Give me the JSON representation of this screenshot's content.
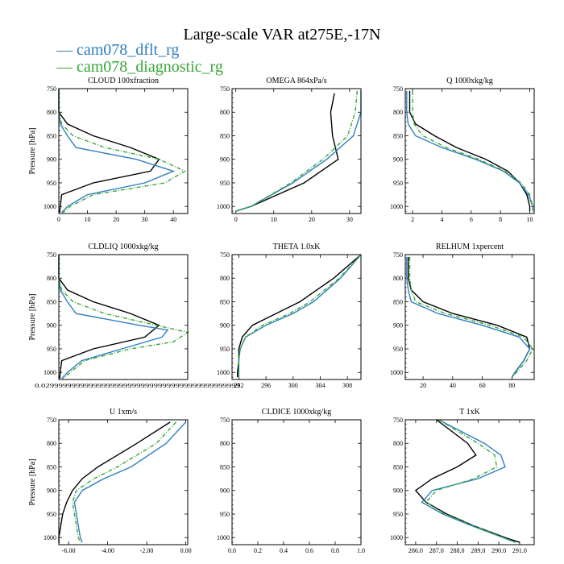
{
  "figure": {
    "title": "Large-scale VAR at275E,-17N",
    "legend": [
      {
        "name": "cam078_dflt_rg",
        "color": "#2f7fc1"
      },
      {
        "name": "cam078_diagnostic_rg",
        "color": "#3aa53a"
      }
    ],
    "black_line_color": "#000000"
  },
  "chart_data": [
    {
      "type": "line",
      "title": "CLOUD 100xfraction",
      "ylabel": "Pressure [hPa]",
      "xlim": [
        0,
        45
      ],
      "ylim": [
        750,
        1015
      ],
      "y_inverted": true,
      "xticks": [
        0,
        10,
        20,
        30,
        40
      ],
      "xtick_labels": [
        "0",
        "10",
        "20",
        "30",
        "40"
      ],
      "yticks": [
        750,
        800,
        850,
        900,
        950,
        1000
      ],
      "series": [
        {
          "key": "black",
          "color": "#000000",
          "y": [
            750,
            800,
            825,
            850,
            875,
            900,
            925,
            950,
            975,
            1000,
            1013
          ],
          "x": [
            0,
            0,
            3,
            12,
            25,
            35,
            32,
            12,
            1,
            0.5,
            0.3
          ]
        },
        {
          "name": "cam078_dflt_rg",
          "color": "#2f7fc1",
          "y": [
            750,
            800,
            825,
            850,
            875,
            900,
            925,
            950,
            975,
            1000,
            1013
          ],
          "x": [
            0,
            0,
            0.5,
            3,
            6,
            27,
            40,
            30,
            10,
            3,
            1
          ]
        },
        {
          "name": "cam078_diagnostic_rg",
          "color": "#3aa53a",
          "dashed": true,
          "y": [
            750,
            800,
            825,
            850,
            875,
            900,
            925,
            950,
            975,
            1000,
            1013
          ],
          "x": [
            0,
            0,
            1,
            5,
            16,
            35,
            44,
            37,
            12,
            4,
            1.5
          ]
        }
      ]
    },
    {
      "type": "line",
      "title": "OMEGA 864xPa/s",
      "ylabel": "",
      "xlim": [
        -1,
        33
      ],
      "ylim": [
        750,
        1015
      ],
      "y_inverted": true,
      "xticks": [
        0,
        10,
        20,
        30
      ],
      "xtick_labels": [
        "0",
        "10",
        "20",
        "30"
      ],
      "yticks": [
        750,
        800,
        850,
        900,
        950,
        1000
      ],
      "series": [
        {
          "key": "black",
          "color": "#000000",
          "y": [
            760,
            800,
            850,
            900,
            950,
            1000,
            1010
          ],
          "x": [
            26,
            25,
            25.5,
            27,
            18,
            4,
            0
          ]
        },
        {
          "name": "cam078_dflt_rg",
          "color": "#2f7fc1",
          "y": [
            755,
            800,
            850,
            900,
            950,
            1000,
            1010
          ],
          "x": [
            33,
            33,
            31,
            24,
            15,
            4,
            0
          ]
        },
        {
          "name": "cam078_diagnostic_rg",
          "color": "#3aa53a",
          "dashed": true,
          "y": [
            755,
            800,
            850,
            900,
            950,
            1000,
            1010
          ],
          "x": [
            32,
            31.5,
            29.5,
            23,
            14.5,
            4,
            0
          ]
        }
      ]
    },
    {
      "type": "line",
      "title": "Q 1000xkg/kg",
      "ylabel": "",
      "xlim": [
        1.5,
        10.3
      ],
      "ylim": [
        750,
        1015
      ],
      "y_inverted": true,
      "xticks": [
        2,
        4,
        6,
        8,
        10
      ],
      "xtick_labels": [
        "2",
        "4",
        "6",
        "8",
        "10"
      ],
      "yticks": [
        750,
        800,
        850,
        900,
        950,
        1000
      ],
      "series": [
        {
          "key": "black",
          "color": "#000000",
          "y": [
            755,
            800,
            825,
            850,
            875,
            900,
            925,
            950,
            975,
            1000,
            1010
          ],
          "x": [
            1.8,
            1.8,
            2.2,
            3.5,
            5,
            7,
            8.5,
            9.3,
            9.8,
            10,
            10
          ]
        },
        {
          "name": "cam078_dflt_rg",
          "color": "#2f7fc1",
          "y": [
            755,
            800,
            825,
            850,
            875,
            900,
            925,
            950,
            975,
            1000,
            1010
          ],
          "x": [
            1.6,
            1.6,
            1.7,
            2.2,
            4,
            6.3,
            8.2,
            9.3,
            9.9,
            10.2,
            10.2
          ]
        },
        {
          "name": "cam078_diagnostic_rg",
          "color": "#3aa53a",
          "dashed": true,
          "y": [
            755,
            800,
            825,
            850,
            875,
            900,
            925,
            950,
            975,
            1000,
            1010
          ],
          "x": [
            2,
            2,
            2.1,
            2.7,
            4.3,
            6.5,
            8.3,
            9.4,
            10,
            10.2,
            10.2
          ]
        }
      ]
    },
    {
      "type": "line",
      "title": "CLDLIQ 1000xkg/kg",
      "ylabel": "Pressure [hPa]",
      "xlim": [
        0,
        45
      ],
      "ylim": [
        750,
        1015
      ],
      "y_inverted": true,
      "xticks": [],
      "xtick_labels": [],
      "x_extra_label": "0.0299999999999999999999999999999999999999999999",
      "yticks": [
        750,
        800,
        850,
        900,
        950,
        1000
      ],
      "series": [
        {
          "key": "black",
          "color": "#000000",
          "y": [
            750,
            800,
            825,
            850,
            875,
            900,
            925,
            950,
            975,
            1000,
            1013
          ],
          "x": [
            0,
            0,
            3,
            12,
            25,
            35,
            30,
            12,
            1,
            0.5,
            0.3
          ]
        },
        {
          "name": "cam078_dflt_rg",
          "color": "#2f7fc1",
          "y": [
            750,
            800,
            825,
            850,
            875,
            900,
            910,
            925,
            950,
            975,
            1000,
            1013
          ],
          "x": [
            0,
            0,
            0.5,
            3,
            6,
            28,
            38,
            36,
            22,
            8,
            3,
            1
          ]
        },
        {
          "name": "cam078_diagnostic_rg",
          "color": "#3aa53a",
          "dashed": true,
          "y": [
            750,
            800,
            825,
            850,
            875,
            900,
            915,
            935,
            950,
            975,
            1000,
            1013
          ],
          "x": [
            0,
            0,
            1,
            5,
            16,
            34,
            45,
            40,
            25,
            9,
            4,
            1.5
          ]
        }
      ]
    },
    {
      "type": "line",
      "title": "THETA 1.0xK",
      "ylabel": "",
      "xlim": [
        291,
        310
      ],
      "ylim": [
        750,
        1015
      ],
      "y_inverted": true,
      "xticks": [
        292,
        296,
        300,
        304,
        308
      ],
      "xtick_labels": [
        "292",
        "296",
        "300",
        "304",
        "308"
      ],
      "yticks": [
        750,
        800,
        850,
        900,
        950,
        1000
      ],
      "series": [
        {
          "key": "black",
          "color": "#000000",
          "y": [
            750,
            800,
            850,
            875,
            900,
            925,
            950,
            975,
            1000,
            1010
          ],
          "x": [
            310,
            306,
            301,
            297.5,
            294,
            292.5,
            292,
            292,
            291.8,
            291.8
          ]
        },
        {
          "name": "cam078_dflt_rg",
          "color": "#2f7fc1",
          "y": [
            750,
            800,
            850,
            875,
            900,
            925,
            950,
            975,
            1000,
            1010
          ],
          "x": [
            310,
            307,
            303,
            300,
            296,
            293,
            292.2,
            292,
            292,
            292
          ]
        },
        {
          "name": "cam078_diagnostic_rg",
          "color": "#3aa53a",
          "dashed": true,
          "y": [
            750,
            800,
            850,
            875,
            900,
            925,
            950,
            975,
            1000,
            1010
          ],
          "x": [
            310,
            306.8,
            302.5,
            299.5,
            295.5,
            293,
            292.2,
            292,
            292,
            292
          ]
        }
      ]
    },
    {
      "type": "line",
      "title": "RELHUM 1xpercent",
      "ylabel": "",
      "xlim": [
        8,
        95
      ],
      "ylim": [
        750,
        1015
      ],
      "y_inverted": true,
      "xticks": [
        20,
        40,
        60,
        80
      ],
      "xtick_labels": [
        "20",
        "40",
        "60",
        "80"
      ],
      "yticks": [
        750,
        800,
        850,
        900,
        950,
        1000
      ],
      "series": [
        {
          "key": "black",
          "color": "#000000",
          "y": [
            755,
            800,
            825,
            850,
            875,
            900,
            925,
            950,
            975,
            1000,
            1010
          ],
          "x": [
            10,
            10,
            12,
            20,
            40,
            70,
            90,
            92,
            88,
            82,
            80
          ]
        },
        {
          "name": "cam078_dflt_rg",
          "color": "#2f7fc1",
          "y": [
            755,
            800,
            825,
            850,
            875,
            900,
            925,
            950,
            975,
            1000,
            1010
          ],
          "x": [
            9,
            9,
            10,
            12,
            30,
            60,
            85,
            92,
            88,
            82,
            80
          ]
        },
        {
          "name": "cam078_diagnostic_rg",
          "color": "#3aa53a",
          "dashed": true,
          "y": [
            755,
            800,
            825,
            850,
            875,
            900,
            925,
            950,
            975,
            1000,
            1010
          ],
          "x": [
            11,
            11,
            12,
            15,
            35,
            65,
            88,
            94,
            90,
            83,
            80
          ]
        }
      ]
    },
    {
      "type": "line",
      "title": "U 1xm/s",
      "ylabel": "Pressure [hPa]",
      "xlim": [
        -6.5,
        0.1
      ],
      "ylim": [
        750,
        1015
      ],
      "y_inverted": true,
      "xticks": [
        -6,
        -4,
        -2,
        0
      ],
      "xtick_labels": [
        "-6.00",
        "-4.00",
        "-2.00",
        "0.00"
      ],
      "yticks": [
        750,
        800,
        850,
        900,
        950,
        1000
      ],
      "series": [
        {
          "key": "black",
          "color": "#000000",
          "y": [
            755,
            800,
            850,
            875,
            900,
            925,
            950,
            975,
            1000,
            1010
          ],
          "x": [
            -0.8,
            -2.5,
            -4.5,
            -5.3,
            -5.8,
            -6.1,
            -6.3,
            -6.4,
            -6.5,
            -6.5
          ]
        },
        {
          "name": "cam078_dflt_rg",
          "color": "#2f7fc1",
          "y": [
            755,
            800,
            850,
            875,
            900,
            925,
            950,
            975,
            1000,
            1010
          ],
          "x": [
            0,
            -1,
            -2.8,
            -4.2,
            -5.3,
            -5.7,
            -5.6,
            -5.5,
            -5.4,
            -5.3
          ]
        },
        {
          "name": "cam078_diagnostic_rg",
          "color": "#3aa53a",
          "dashed": true,
          "y": [
            755,
            800,
            850,
            875,
            900,
            925,
            950,
            975,
            1000,
            1010
          ],
          "x": [
            -0.5,
            -1.5,
            -3.5,
            -4.7,
            -5.6,
            -5.8,
            -5.7,
            -5.6,
            -5.5,
            -5.4
          ]
        }
      ]
    },
    {
      "type": "line",
      "title": "CLDICE 1000xkg/kg",
      "ylabel": "",
      "xlim": [
        0,
        1
      ],
      "ylim": [
        750,
        1015
      ],
      "y_inverted": true,
      "xticks": [
        0,
        0.2,
        0.4,
        0.6,
        0.8,
        1.0
      ],
      "xtick_labels": [
        "0.0",
        "0.2",
        "0.4",
        "0.6",
        "0.8",
        "1.0"
      ],
      "yticks": [
        750,
        800,
        850,
        900,
        950,
        1000
      ],
      "series": []
    },
    {
      "type": "line",
      "title": "T 1xK",
      "ylabel": "",
      "xlim": [
        285.5,
        291.7
      ],
      "ylim": [
        750,
        1015
      ],
      "y_inverted": true,
      "xticks": [
        286,
        287,
        288,
        289,
        290,
        291
      ],
      "xtick_labels": [
        "286.0",
        "287.0",
        "288.0",
        "289.0",
        "290.0",
        "291.0"
      ],
      "yticks": [
        750,
        800,
        850,
        900,
        950,
        1000
      ],
      "series": [
        {
          "key": "black",
          "color": "#000000",
          "y": [
            750,
            800,
            825,
            850,
            875,
            900,
            925,
            950,
            975,
            1000,
            1010
          ],
          "x": [
            287,
            288.5,
            288.9,
            288,
            286.8,
            286,
            286.5,
            287.5,
            288.8,
            290.3,
            291
          ]
        },
        {
          "name": "cam078_dflt_rg",
          "color": "#2f7fc1",
          "y": [
            750,
            800,
            825,
            850,
            875,
            900,
            925,
            950,
            975,
            1000,
            1010
          ],
          "x": [
            287.1,
            289.3,
            290.1,
            290.3,
            289,
            286.8,
            286.3,
            287.3,
            288.7,
            290.2,
            290.8
          ]
        },
        {
          "name": "cam078_diagnostic_rg",
          "color": "#3aa53a",
          "dashed": true,
          "y": [
            750,
            800,
            825,
            850,
            875,
            900,
            925,
            950,
            975,
            1000,
            1010
          ],
          "x": [
            287.1,
            289,
            289.8,
            289.9,
            288.8,
            287,
            286.5,
            287.4,
            288.8,
            290.2,
            290.8
          ]
        }
      ]
    }
  ]
}
